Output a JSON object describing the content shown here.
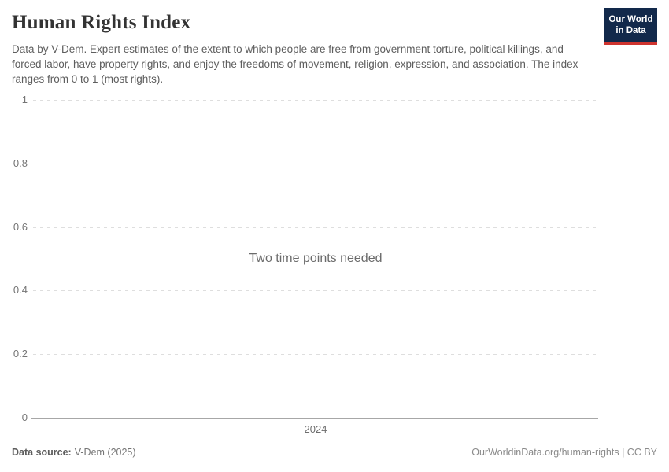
{
  "header": {
    "title": "Human Rights Index",
    "subtitle": "Data by V-Dem. Expert estimates of the extent to which people are free from government torture, political killings, and forced labor, have property rights, and enjoy the freedoms of movement, religion, expression, and association. The index ranges from 0 to 1 (most rights).",
    "logo": {
      "line1": "Our World",
      "line2": "in Data",
      "bg_color": "#12294b",
      "accent_color": "#ce342f"
    }
  },
  "chart_data": {
    "type": "line",
    "title": "Human Rights Index",
    "xlabel": "",
    "ylabel": "",
    "ylim": [
      0,
      1
    ],
    "yticks": [
      "0",
      "0.2",
      "0.4",
      "0.6",
      "0.8",
      "1"
    ],
    "ytick_values": [
      0,
      0.2,
      0.4,
      0.6,
      0.8,
      1
    ],
    "xticks": [
      "2024"
    ],
    "series": [],
    "empty_state_message": "Two time points needed",
    "grid": true,
    "gridline_color": "#dedede",
    "axis_color": "#a7a7a7"
  },
  "footer": {
    "source_label": "Data source:",
    "source_value": "V-Dem (2025)",
    "attribution": "OurWorldinData.org/human-rights | CC BY"
  }
}
